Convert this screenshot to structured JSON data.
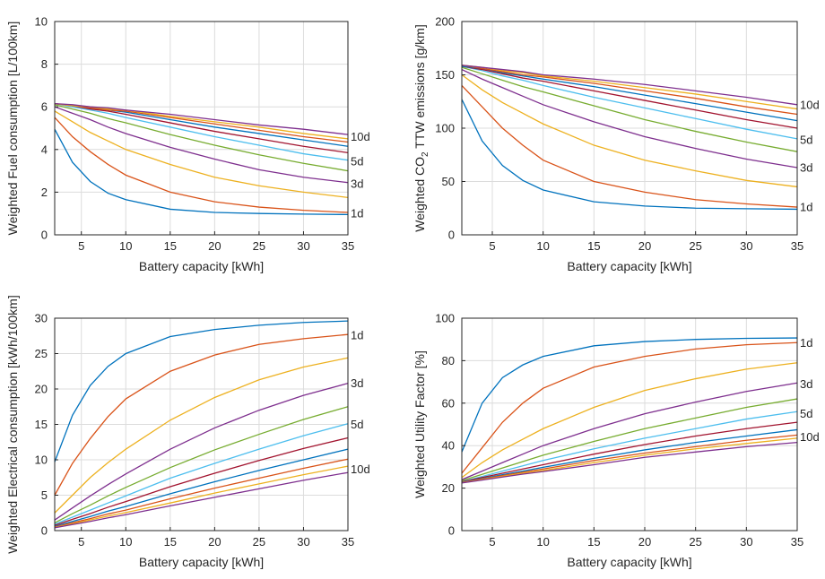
{
  "colors": [
    "#0072BD",
    "#D95319",
    "#EDB120",
    "#7E2F8E",
    "#77AC30",
    "#4DBEEE",
    "#A2142F",
    "#0072BD",
    "#D95319",
    "#EDB120",
    "#7E2F8E"
  ],
  "chart_data": [
    {
      "type": "line",
      "title": "",
      "xlabel": "Battery capacity [kWh]",
      "ylabel": "Weighted Fuel consumption [L/100km]",
      "xlim": [
        2,
        35
      ],
      "ylim": [
        0,
        10
      ],
      "xticks": [
        5,
        10,
        15,
        20,
        25,
        30,
        35
      ],
      "yticks": [
        0,
        2,
        4,
        6,
        8,
        10
      ],
      "grid": true,
      "x": [
        2,
        4,
        6,
        8,
        10,
        15,
        20,
        25,
        30,
        35
      ],
      "series": [
        {
          "values": [
            4.95,
            3.4,
            2.5,
            1.95,
            1.65,
            1.2,
            1.05,
            1.0,
            0.97,
            0.95
          ]
        },
        {
          "values": [
            5.5,
            4.6,
            3.9,
            3.3,
            2.8,
            2.0,
            1.55,
            1.3,
            1.15,
            1.05
          ]
        },
        {
          "values": [
            5.8,
            5.3,
            4.8,
            4.4,
            4.0,
            3.3,
            2.7,
            2.3,
            2.0,
            1.75
          ]
        },
        {
          "values": [
            6.0,
            5.7,
            5.4,
            5.05,
            4.75,
            4.1,
            3.55,
            3.05,
            2.7,
            2.45
          ]
        },
        {
          "values": [
            6.1,
            5.9,
            5.7,
            5.45,
            5.25,
            4.7,
            4.2,
            3.75,
            3.35,
            3.0
          ]
        },
        {
          "values": [
            6.15,
            6.0,
            5.85,
            5.7,
            5.5,
            5.05,
            4.6,
            4.2,
            3.8,
            3.5
          ]
        },
        {
          "values": [
            6.15,
            6.05,
            5.9,
            5.8,
            5.65,
            5.25,
            4.85,
            4.5,
            4.15,
            3.85
          ]
        },
        {
          "values": [
            6.15,
            6.05,
            5.95,
            5.85,
            5.75,
            5.4,
            5.05,
            4.75,
            4.45,
            4.15
          ]
        },
        {
          "values": [
            6.15,
            6.05,
            5.95,
            5.85,
            5.8,
            5.5,
            5.2,
            4.9,
            4.6,
            4.35
          ]
        },
        {
          "values": [
            6.15,
            6.05,
            6.0,
            5.9,
            5.85,
            5.55,
            5.3,
            5.05,
            4.75,
            4.5
          ]
        },
        {
          "values": [
            6.15,
            6.1,
            6.0,
            5.95,
            5.85,
            5.65,
            5.4,
            5.15,
            4.95,
            4.7
          ]
        }
      ],
      "labels": [
        {
          "text": "10d",
          "value": 4.6
        },
        {
          "text": "5d",
          "value": 3.45
        },
        {
          "text": "3d",
          "value": 2.4
        },
        {
          "text": "1d",
          "value": 1.0
        }
      ]
    },
    {
      "type": "line",
      "title": "",
      "xlabel": "Battery capacity [kWh]",
      "ylabel": "Weighted CO2 TTW emissions [g/km]",
      "xlim": [
        2,
        35
      ],
      "ylim": [
        0,
        200
      ],
      "xticks": [
        5,
        10,
        15,
        20,
        25,
        30,
        35
      ],
      "yticks": [
        0,
        50,
        100,
        150,
        200
      ],
      "grid": true,
      "x": [
        2,
        4,
        6,
        8,
        10,
        15,
        20,
        25,
        30,
        35
      ],
      "series": [
        {
          "values": [
            127,
            88,
            65,
            51,
            42,
            31,
            27,
            25,
            24.5,
            24
          ]
        },
        {
          "values": [
            140,
            120,
            100,
            84,
            70,
            50,
            40,
            33,
            29,
            26
          ]
        },
        {
          "values": [
            150,
            136,
            124,
            114,
            104,
            84,
            70,
            60,
            51,
            45
          ]
        },
        {
          "values": [
            155,
            146,
            138,
            130,
            122,
            106,
            92,
            81,
            71,
            63
          ]
        },
        {
          "values": [
            157,
            151,
            145,
            139,
            134,
            121,
            108,
            97,
            87,
            78
          ]
        },
        {
          "values": [
            158,
            154,
            149,
            145,
            140,
            129,
            119,
            109,
            99,
            90
          ]
        },
        {
          "values": [
            158,
            155,
            151,
            147,
            144,
            135,
            126,
            117,
            108,
            100
          ]
        },
        {
          "values": [
            158,
            156,
            152,
            149,
            146,
            139,
            131,
            123,
            115,
            107
          ]
        },
        {
          "values": [
            159,
            156,
            153,
            150,
            148,
            142,
            135,
            128,
            120,
            113
          ]
        },
        {
          "values": [
            159,
            157,
            154,
            152,
            149,
            144,
            138,
            132,
            125,
            118
          ]
        },
        {
          "values": [
            159,
            157,
            155,
            153,
            150,
            146,
            141,
            135,
            129,
            122
          ]
        }
      ],
      "labels": [
        {
          "text": "10d",
          "value": 122
        },
        {
          "text": "5d",
          "value": 89
        },
        {
          "text": "3d",
          "value": 63
        },
        {
          "text": "1d",
          "value": 26
        }
      ]
    },
    {
      "type": "line",
      "title": "",
      "xlabel": "Battery capacity [kWh]",
      "ylabel": "Weighted Electrical consumption [kWh/100km]",
      "xlim": [
        2,
        35
      ],
      "ylim": [
        0,
        30
      ],
      "xticks": [
        5,
        10,
        15,
        20,
        25,
        30,
        35
      ],
      "yticks": [
        0,
        5,
        10,
        15,
        20,
        25,
        30
      ],
      "grid": true,
      "x": [
        2,
        4,
        6,
        8,
        10,
        15,
        20,
        25,
        30,
        35
      ],
      "series": [
        {
          "values": [
            9.7,
            16.3,
            20.5,
            23.2,
            25.0,
            27.4,
            28.4,
            29.0,
            29.4,
            29.6
          ]
        },
        {
          "values": [
            5.0,
            9.5,
            13.0,
            16.1,
            18.6,
            22.5,
            24.8,
            26.3,
            27.1,
            27.7
          ]
        },
        {
          "values": [
            2.5,
            5.0,
            7.5,
            9.6,
            11.5,
            15.6,
            18.8,
            21.3,
            23.1,
            24.4
          ]
        },
        {
          "values": [
            1.5,
            3.2,
            4.9,
            6.5,
            8.0,
            11.5,
            14.5,
            17.0,
            19.1,
            20.8
          ]
        },
        {
          "values": [
            1.1,
            2.4,
            3.6,
            4.9,
            6.1,
            8.9,
            11.4,
            13.6,
            15.7,
            17.5
          ]
        },
        {
          "values": [
            0.9,
            1.9,
            2.9,
            3.9,
            4.9,
            7.4,
            9.5,
            11.5,
            13.4,
            15.1
          ]
        },
        {
          "values": [
            0.75,
            1.6,
            2.4,
            3.3,
            4.1,
            6.2,
            8.1,
            9.9,
            11.6,
            13.1
          ]
        },
        {
          "values": [
            0.6,
            1.3,
            2.0,
            2.75,
            3.4,
            5.2,
            6.9,
            8.5,
            10.0,
            11.5
          ]
        },
        {
          "values": [
            0.5,
            1.1,
            1.7,
            2.35,
            2.9,
            4.5,
            6.0,
            7.4,
            8.8,
            10.1
          ]
        },
        {
          "values": [
            0.45,
            0.95,
            1.5,
            2.05,
            2.55,
            3.9,
            5.3,
            6.6,
            7.9,
            9.1
          ]
        },
        {
          "values": [
            0.4,
            0.85,
            1.3,
            1.8,
            2.25,
            3.5,
            4.7,
            5.9,
            7.1,
            8.2
          ]
        }
      ],
      "labels": [
        {
          "text": "1d",
          "value": 27.6
        },
        {
          "text": "3d",
          "value": 20.8
        },
        {
          "text": "5d",
          "value": 15.0
        },
        {
          "text": "10d",
          "value": 8.7
        }
      ]
    },
    {
      "type": "line",
      "title": "",
      "xlabel": "Battery capacity [kWh]",
      "ylabel": "Weighted Utility Factor [%]",
      "xlim": [
        2,
        35
      ],
      "ylim": [
        0,
        100
      ],
      "xticks": [
        5,
        10,
        15,
        20,
        25,
        30,
        35
      ],
      "yticks": [
        0,
        20,
        40,
        60,
        80,
        100
      ],
      "grid": true,
      "x": [
        2,
        4,
        6,
        8,
        10,
        15,
        20,
        25,
        30,
        35
      ],
      "series": [
        {
          "values": [
            37,
            60,
            72,
            78,
            82,
            87,
            89,
            90,
            90.5,
            90.7
          ]
        },
        {
          "values": [
            27,
            39,
            51,
            60,
            67,
            77,
            82,
            85.5,
            87.5,
            88.5
          ]
        },
        {
          "values": [
            25,
            32,
            38,
            43,
            48,
            58,
            66,
            71.5,
            76,
            79
          ]
        },
        {
          "values": [
            24,
            28,
            32,
            36,
            40,
            48,
            55,
            60.5,
            65.5,
            69.5
          ]
        },
        {
          "values": [
            23.5,
            26.5,
            29.5,
            32.5,
            35.5,
            42,
            48,
            53,
            58,
            62
          ]
        },
        {
          "values": [
            23,
            25.5,
            28,
            30.5,
            33,
            38.5,
            43.5,
            48,
            52.5,
            56
          ]
        },
        {
          "values": [
            23,
            25,
            27,
            29,
            31,
            36,
            40.5,
            44.5,
            48,
            51
          ]
        },
        {
          "values": [
            22.8,
            24.5,
            26.3,
            28,
            29.8,
            34,
            38,
            41.5,
            44.5,
            47.5
          ]
        },
        {
          "values": [
            22.6,
            24.3,
            25.9,
            27.5,
            29,
            33,
            36.5,
            39.5,
            42.5,
            45
          ]
        },
        {
          "values": [
            22.5,
            24,
            25.5,
            27,
            28.3,
            32,
            35.5,
            38.5,
            41,
            43.5
          ]
        },
        {
          "values": [
            22.4,
            23.8,
            25.2,
            26.6,
            27.8,
            31,
            34.5,
            37,
            39.5,
            41.5
          ]
        }
      ],
      "labels": [
        {
          "text": "1d",
          "value": 88.5
        },
        {
          "text": "3d",
          "value": 69
        },
        {
          "text": "5d",
          "value": 55
        },
        {
          "text": "10d",
          "value": 44
        }
      ]
    }
  ]
}
